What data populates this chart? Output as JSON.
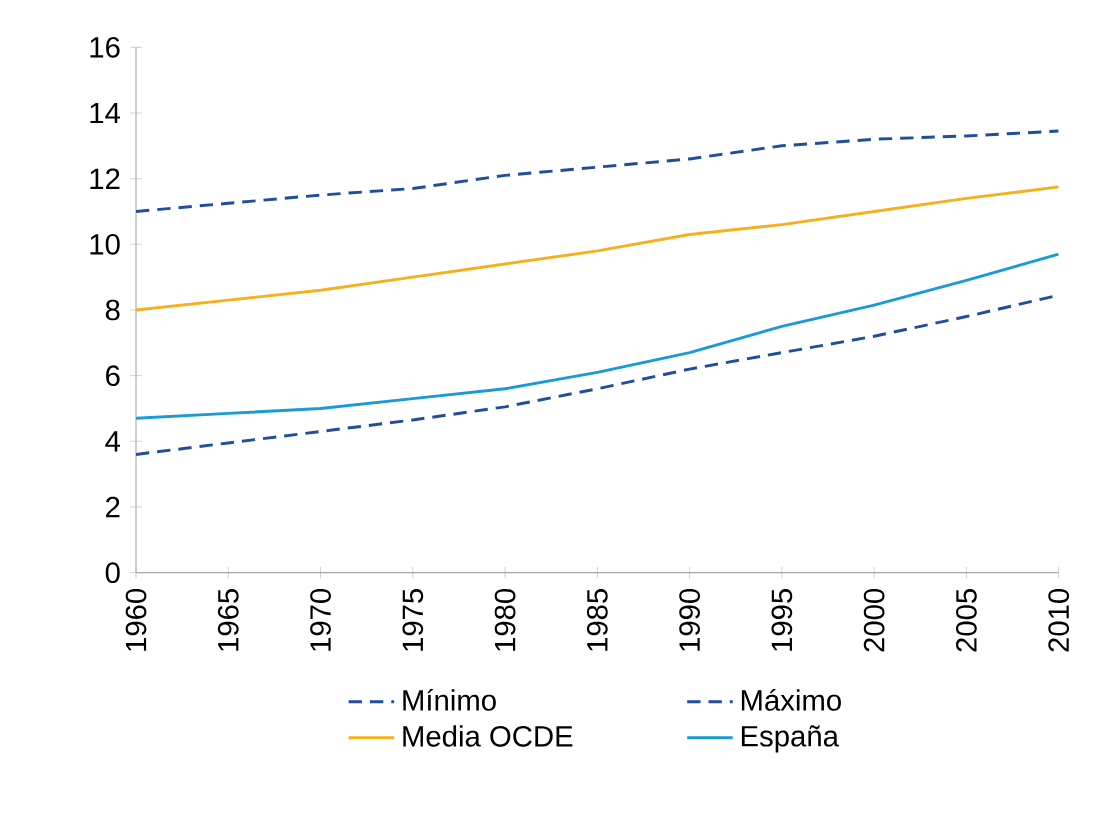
{
  "chart_data": {
    "type": "line",
    "x": [
      1960,
      1965,
      1970,
      1975,
      1980,
      1985,
      1990,
      1995,
      2000,
      2005,
      2010
    ],
    "series": [
      {
        "name": "Mínimo",
        "color": "#1f4e9c",
        "line_style": "dashed",
        "values": [
          3.6,
          3.95,
          4.3,
          4.65,
          5.05,
          5.6,
          6.2,
          6.7,
          7.2,
          7.8,
          8.45
        ]
      },
      {
        "name": "Máximo",
        "color": "#1f4e9c",
        "line_style": "dashed",
        "values": [
          11.0,
          11.25,
          11.5,
          11.7,
          12.1,
          12.35,
          12.6,
          13.0,
          13.2,
          13.3,
          13.45
        ]
      },
      {
        "name": "Media OCDE",
        "color": "#f5b01e",
        "line_style": "solid",
        "values": [
          8.0,
          8.3,
          8.6,
          9.0,
          9.4,
          9.8,
          10.3,
          10.6,
          11.0,
          11.4,
          11.75
        ]
      },
      {
        "name": "España",
        "color": "#1a9ad6",
        "line_style": "solid",
        "values": [
          4.7,
          4.85,
          5.0,
          5.3,
          5.6,
          6.1,
          6.7,
          7.5,
          8.15,
          8.9,
          9.7
        ]
      }
    ],
    "xlim": [
      1960,
      2010
    ],
    "ylim": [
      0,
      16
    ],
    "xticks": [
      1960,
      1965,
      1970,
      1975,
      1980,
      1985,
      1990,
      1995,
      2000,
      2005,
      2010
    ],
    "yticks": [
      0,
      2,
      4,
      6,
      8,
      10,
      12,
      14,
      16
    ],
    "grid": false,
    "legend": "bottom",
    "marker": "none"
  }
}
